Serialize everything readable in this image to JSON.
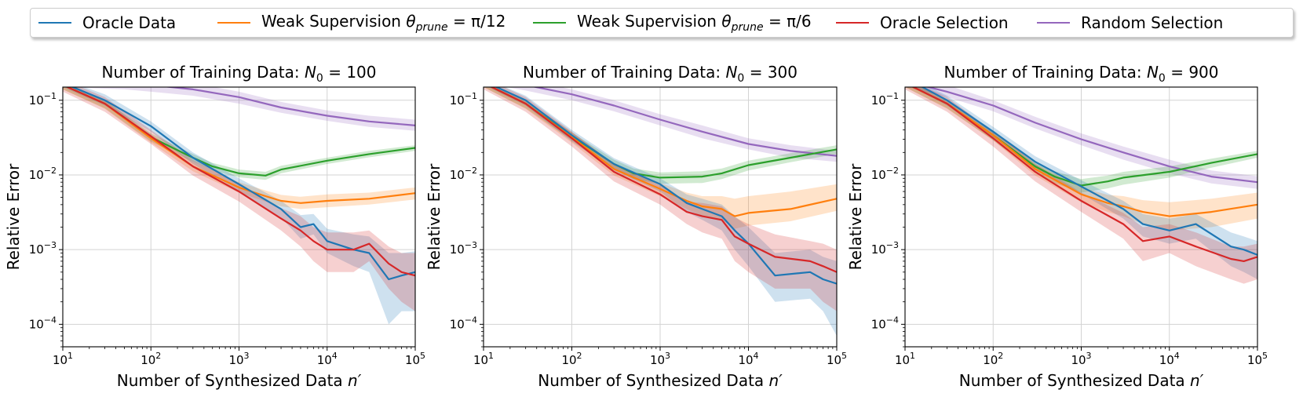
{
  "legend": [
    {
      "id": "oracle_data",
      "label": "Oracle Data",
      "color": "#1f77b4"
    },
    {
      "id": "weak_12",
      "label_prefix": "Weak Supervision ",
      "label_math": "θ",
      "label_sub": "prune",
      "label_suffix": " = π/12",
      "color": "#ff7f0e"
    },
    {
      "id": "weak_6",
      "label_prefix": "Weak Supervision ",
      "label_math": "θ",
      "label_sub": "prune",
      "label_suffix": " = π/6",
      "color": "#2ca02c"
    },
    {
      "id": "oracle_sel",
      "label": "Oracle Selection",
      "color": "#d62728"
    },
    {
      "id": "random_sel",
      "label": "Random Selection",
      "color": "#9467bd"
    }
  ],
  "chart_data": [
    {
      "type": "line",
      "title_prefix": "Number of Training Data: ",
      "title_var": "N",
      "title_sub": "0",
      "title_value": " = 100",
      "xlabel_prefix": "Number of Synthesized Data ",
      "xlabel_var": "n′",
      "ylabel": "Relative Error",
      "xscale": "log",
      "yscale": "log",
      "xlim": [
        10,
        100000
      ],
      "ylim": [
        5e-05,
        0.15
      ],
      "xticks": [
        {
          "base": "10",
          "exp": "1"
        },
        {
          "base": "10",
          "exp": "2"
        },
        {
          "base": "10",
          "exp": "3"
        },
        {
          "base": "10",
          "exp": "4"
        },
        {
          "base": "10",
          "exp": "5"
        }
      ],
      "yticks": [
        {
          "base": "10",
          "exp": "−4"
        },
        {
          "base": "10",
          "exp": "−3"
        },
        {
          "base": "10",
          "exp": "−2"
        },
        {
          "base": "10",
          "exp": "−1"
        }
      ],
      "grid": true,
      "series": [
        {
          "id": "random_sel",
          "x": [
            10,
            50,
            100,
            300,
            1000,
            3000,
            10000,
            30000,
            100000
          ],
          "y": [
            0.18,
            0.17,
            0.16,
            0.14,
            0.11,
            0.08,
            0.062,
            0.052,
            0.046
          ],
          "lo": [
            0.15,
            0.14,
            0.13,
            0.115,
            0.09,
            0.068,
            0.053,
            0.044,
            0.039
          ],
          "hi": [
            0.22,
            0.21,
            0.19,
            0.17,
            0.13,
            0.095,
            0.073,
            0.062,
            0.055
          ]
        },
        {
          "id": "weak_6",
          "x": [
            10,
            30,
            100,
            300,
            500,
            1000,
            2000,
            3000,
            10000,
            30000,
            100000
          ],
          "y": [
            0.16,
            0.09,
            0.032,
            0.017,
            0.013,
            0.0105,
            0.0098,
            0.0118,
            0.0155,
            0.019,
            0.023
          ],
          "lo": [
            0.14,
            0.078,
            0.028,
            0.015,
            0.0115,
            0.0093,
            0.0086,
            0.0105,
            0.014,
            0.0172,
            0.021
          ],
          "hi": [
            0.18,
            0.1,
            0.036,
            0.019,
            0.0145,
            0.0118,
            0.011,
            0.0133,
            0.017,
            0.021,
            0.025
          ]
        },
        {
          "id": "weak_12",
          "x": [
            10,
            30,
            100,
            300,
            1000,
            2000,
            3000,
            5000,
            10000,
            30000,
            100000
          ],
          "y": [
            0.16,
            0.09,
            0.031,
            0.013,
            0.0068,
            0.0052,
            0.0045,
            0.0042,
            0.0045,
            0.0048,
            0.0057
          ],
          "lo": [
            0.14,
            0.077,
            0.027,
            0.0112,
            0.0058,
            0.0044,
            0.0038,
            0.0035,
            0.0037,
            0.004,
            0.0047
          ],
          "hi": [
            0.18,
            0.1,
            0.035,
            0.015,
            0.008,
            0.0062,
            0.0054,
            0.0051,
            0.0055,
            0.0058,
            0.0068
          ]
        },
        {
          "id": "oracle_data",
          "x": [
            10,
            30,
            100,
            300,
            1000,
            3000,
            5000,
            7000,
            10000,
            20000,
            30000,
            50000,
            70000,
            100000
          ],
          "y": [
            0.17,
            0.1,
            0.045,
            0.017,
            0.0075,
            0.0035,
            0.002,
            0.0022,
            0.0013,
            0.001,
            0.0009,
            0.0004,
            0.00045,
            0.0005
          ],
          "lo": [
            0.15,
            0.085,
            0.038,
            0.014,
            0.0062,
            0.0027,
            0.0014,
            0.0016,
            0.0009,
            0.0006,
            0.0005,
            0.0001,
            0.00015,
            0.00015
          ],
          "hi": [
            0.19,
            0.12,
            0.052,
            0.02,
            0.009,
            0.0045,
            0.0029,
            0.003,
            0.0019,
            0.0016,
            0.0015,
            0.0009,
            0.0009,
            0.00095
          ]
        },
        {
          "id": "oracle_sel",
          "x": [
            10,
            30,
            100,
            300,
            1000,
            3000,
            5000,
            7000,
            10000,
            20000,
            30000,
            50000,
            70000,
            100000
          ],
          "y": [
            0.16,
            0.09,
            0.033,
            0.013,
            0.006,
            0.0026,
            0.0018,
            0.0013,
            0.001,
            0.001,
            0.0012,
            0.00065,
            0.0005,
            0.00045
          ],
          "lo": [
            0.13,
            0.07,
            0.026,
            0.0098,
            0.0044,
            0.0018,
            0.0011,
            0.0007,
            0.0005,
            0.0005,
            0.0007,
            0.0003,
            0.0002,
            0.00015
          ],
          "hi": [
            0.19,
            0.11,
            0.04,
            0.016,
            0.0078,
            0.0036,
            0.0028,
            0.002,
            0.0017,
            0.0017,
            0.0018,
            0.0011,
            0.0009,
            0.0009
          ]
        }
      ]
    },
    {
      "type": "line",
      "title_prefix": "Number of Training Data: ",
      "title_var": "N",
      "title_sub": "0",
      "title_value": " = 300",
      "xlabel_prefix": "Number of Synthesized Data ",
      "xlabel_var": "n′",
      "ylabel": "Relative Error",
      "xscale": "log",
      "yscale": "log",
      "xlim": [
        10,
        100000
      ],
      "ylim": [
        5e-05,
        0.15
      ],
      "xticks": [
        {
          "base": "10",
          "exp": "1"
        },
        {
          "base": "10",
          "exp": "2"
        },
        {
          "base": "10",
          "exp": "3"
        },
        {
          "base": "10",
          "exp": "4"
        },
        {
          "base": "10",
          "exp": "5"
        }
      ],
      "yticks": [
        {
          "base": "10",
          "exp": "−4"
        },
        {
          "base": "10",
          "exp": "−3"
        },
        {
          "base": "10",
          "exp": "−2"
        },
        {
          "base": "10",
          "exp": "−1"
        }
      ],
      "grid": true,
      "series": [
        {
          "id": "random_sel",
          "x": [
            10,
            30,
            100,
            300,
            1000,
            3000,
            10000,
            30000,
            100000
          ],
          "y": [
            0.2,
            0.16,
            0.12,
            0.085,
            0.055,
            0.038,
            0.026,
            0.021,
            0.018
          ],
          "lo": [
            0.17,
            0.135,
            0.1,
            0.071,
            0.046,
            0.031,
            0.022,
            0.017,
            0.015
          ],
          "hi": [
            0.23,
            0.19,
            0.14,
            0.1,
            0.065,
            0.046,
            0.031,
            0.025,
            0.021
          ]
        },
        {
          "id": "weak_6",
          "x": [
            10,
            30,
            100,
            300,
            500,
            1000,
            3000,
            5000,
            10000,
            30000,
            100000
          ],
          "y": [
            0.17,
            0.09,
            0.033,
            0.014,
            0.0105,
            0.0092,
            0.0095,
            0.0105,
            0.0135,
            0.017,
            0.022
          ],
          "lo": [
            0.15,
            0.078,
            0.029,
            0.012,
            0.0088,
            0.0076,
            0.0078,
            0.0088,
            0.0115,
            0.0148,
            0.019
          ],
          "hi": [
            0.19,
            0.1,
            0.037,
            0.016,
            0.0122,
            0.0108,
            0.0112,
            0.0122,
            0.0155,
            0.0195,
            0.025
          ]
        },
        {
          "id": "weak_12",
          "x": [
            10,
            30,
            100,
            300,
            1000,
            2000,
            3000,
            5000,
            7000,
            10000,
            30000,
            100000
          ],
          "y": [
            0.17,
            0.09,
            0.032,
            0.012,
            0.0065,
            0.0045,
            0.0038,
            0.0035,
            0.0028,
            0.0031,
            0.0035,
            0.0048
          ],
          "lo": [
            0.15,
            0.077,
            0.027,
            0.0098,
            0.0052,
            0.0035,
            0.0028,
            0.0025,
            0.0019,
            0.0021,
            0.0024,
            0.0033
          ],
          "hi": [
            0.19,
            0.1,
            0.037,
            0.0142,
            0.0078,
            0.0058,
            0.0052,
            0.0052,
            0.0048,
            0.0052,
            0.006,
            0.0075
          ]
        },
        {
          "id": "oracle_data",
          "x": [
            10,
            30,
            100,
            300,
            1000,
            2000,
            3000,
            5000,
            7000,
            10000,
            20000,
            50000,
            70000,
            100000
          ],
          "y": [
            0.18,
            0.1,
            0.034,
            0.014,
            0.0075,
            0.0042,
            0.0035,
            0.0028,
            0.0018,
            0.0012,
            0.00045,
            0.0005,
            0.0004,
            0.00035
          ],
          "lo": [
            0.16,
            0.085,
            0.028,
            0.0115,
            0.006,
            0.0032,
            0.0025,
            0.0018,
            0.001,
            0.0006,
            0.0002,
            0.00022,
            0.00015,
            7e-05
          ],
          "hi": [
            0.2,
            0.115,
            0.04,
            0.0168,
            0.009,
            0.0055,
            0.0048,
            0.004,
            0.0028,
            0.002,
            0.0009,
            0.001,
            0.0008,
            0.0007
          ]
        },
        {
          "id": "oracle_sel",
          "x": [
            10,
            30,
            100,
            300,
            1000,
            2000,
            3000,
            5000,
            7000,
            10000,
            20000,
            50000,
            70000,
            100000
          ],
          "y": [
            0.17,
            0.09,
            0.031,
            0.011,
            0.0055,
            0.0032,
            0.0028,
            0.0025,
            0.0015,
            0.0012,
            0.0008,
            0.0007,
            0.0006,
            0.0005
          ],
          "lo": [
            0.14,
            0.07,
            0.024,
            0.0082,
            0.004,
            0.0022,
            0.0017,
            0.0014,
            0.0007,
            0.0005,
            0.0003,
            0.0003,
            0.0002,
            0.00015
          ],
          "hi": [
            0.2,
            0.11,
            0.038,
            0.014,
            0.0072,
            0.0044,
            0.0042,
            0.0038,
            0.0027,
            0.0022,
            0.0016,
            0.0013,
            0.0012,
            0.001
          ]
        }
      ]
    },
    {
      "type": "line",
      "title_prefix": "Number of Training Data: ",
      "title_var": "N",
      "title_sub": "0",
      "title_value": " = 900",
      "xlabel_prefix": "Number of Synthesized Data ",
      "xlabel_var": "n′",
      "ylabel": "Relative Error",
      "xscale": "log",
      "yscale": "log",
      "xlim": [
        10,
        100000
      ],
      "ylim": [
        5e-05,
        0.15
      ],
      "xticks": [
        {
          "base": "10",
          "exp": "1"
        },
        {
          "base": "10",
          "exp": "2"
        },
        {
          "base": "10",
          "exp": "3"
        },
        {
          "base": "10",
          "exp": "4"
        },
        {
          "base": "10",
          "exp": "5"
        }
      ],
      "yticks": [
        {
          "base": "10",
          "exp": "−4"
        },
        {
          "base": "10",
          "exp": "−3"
        },
        {
          "base": "10",
          "exp": "−2"
        },
        {
          "base": "10",
          "exp": "−1"
        }
      ],
      "grid": true,
      "series": [
        {
          "id": "random_sel",
          "x": [
            10,
            30,
            100,
            300,
            1000,
            3000,
            10000,
            30000,
            100000
          ],
          "y": [
            0.18,
            0.13,
            0.085,
            0.05,
            0.03,
            0.02,
            0.013,
            0.0095,
            0.008
          ],
          "lo": [
            0.15,
            0.11,
            0.071,
            0.042,
            0.025,
            0.016,
            0.0105,
            0.0077,
            0.0065
          ],
          "hi": [
            0.21,
            0.16,
            0.1,
            0.06,
            0.036,
            0.024,
            0.016,
            0.0115,
            0.0096
          ]
        },
        {
          "id": "weak_6",
          "x": [
            10,
            30,
            100,
            300,
            500,
            1000,
            2000,
            3000,
            10000,
            30000,
            100000
          ],
          "y": [
            0.17,
            0.09,
            0.034,
            0.013,
            0.0095,
            0.0072,
            0.0082,
            0.0092,
            0.011,
            0.0145,
            0.019
          ],
          "lo": [
            0.15,
            0.078,
            0.029,
            0.011,
            0.0078,
            0.0058,
            0.0066,
            0.0074,
            0.0092,
            0.0125,
            0.017
          ],
          "hi": [
            0.19,
            0.1,
            0.039,
            0.015,
            0.0112,
            0.0088,
            0.0098,
            0.011,
            0.013,
            0.0165,
            0.021
          ]
        },
        {
          "id": "weak_12",
          "x": [
            10,
            30,
            100,
            300,
            1000,
            2000,
            3000,
            5000,
            10000,
            30000,
            100000
          ],
          "y": [
            0.17,
            0.09,
            0.034,
            0.012,
            0.0055,
            0.0042,
            0.0038,
            0.0032,
            0.0028,
            0.0032,
            0.004
          ],
          "lo": [
            0.15,
            0.077,
            0.029,
            0.0098,
            0.0043,
            0.0032,
            0.0028,
            0.0022,
            0.0018,
            0.002,
            0.0026
          ],
          "hi": [
            0.19,
            0.1,
            0.039,
            0.0142,
            0.0068,
            0.0054,
            0.0052,
            0.0046,
            0.0043,
            0.0048,
            0.0058
          ]
        },
        {
          "id": "oracle_data",
          "x": [
            10,
            30,
            100,
            300,
            1000,
            3000,
            5000,
            10000,
            20000,
            50000,
            70000,
            100000
          ],
          "y": [
            0.2,
            0.1,
            0.038,
            0.015,
            0.007,
            0.0035,
            0.0022,
            0.0018,
            0.0022,
            0.0011,
            0.001,
            0.00085
          ],
          "lo": [
            0.17,
            0.085,
            0.032,
            0.0125,
            0.0056,
            0.0026,
            0.0015,
            0.0012,
            0.0014,
            0.0006,
            0.0005,
            0.0004
          ],
          "hi": [
            0.22,
            0.115,
            0.044,
            0.0178,
            0.0085,
            0.0045,
            0.003,
            0.0026,
            0.003,
            0.0017,
            0.0015,
            0.0013
          ]
        },
        {
          "id": "oracle_sel",
          "x": [
            10,
            30,
            100,
            300,
            1000,
            3000,
            5000,
            10000,
            20000,
            50000,
            70000,
            100000
          ],
          "y": [
            0.17,
            0.09,
            0.031,
            0.011,
            0.0045,
            0.0022,
            0.0013,
            0.0015,
            0.0011,
            0.00075,
            0.0007,
            0.0008
          ],
          "lo": [
            0.14,
            0.07,
            0.024,
            0.0082,
            0.0032,
            0.0014,
            0.0007,
            0.0009,
            0.0006,
            0.0004,
            0.00035,
            0.0004
          ],
          "hi": [
            0.2,
            0.11,
            0.038,
            0.014,
            0.0058,
            0.0031,
            0.002,
            0.0022,
            0.0017,
            0.0011,
            0.0011,
            0.0012
          ]
        }
      ]
    }
  ]
}
